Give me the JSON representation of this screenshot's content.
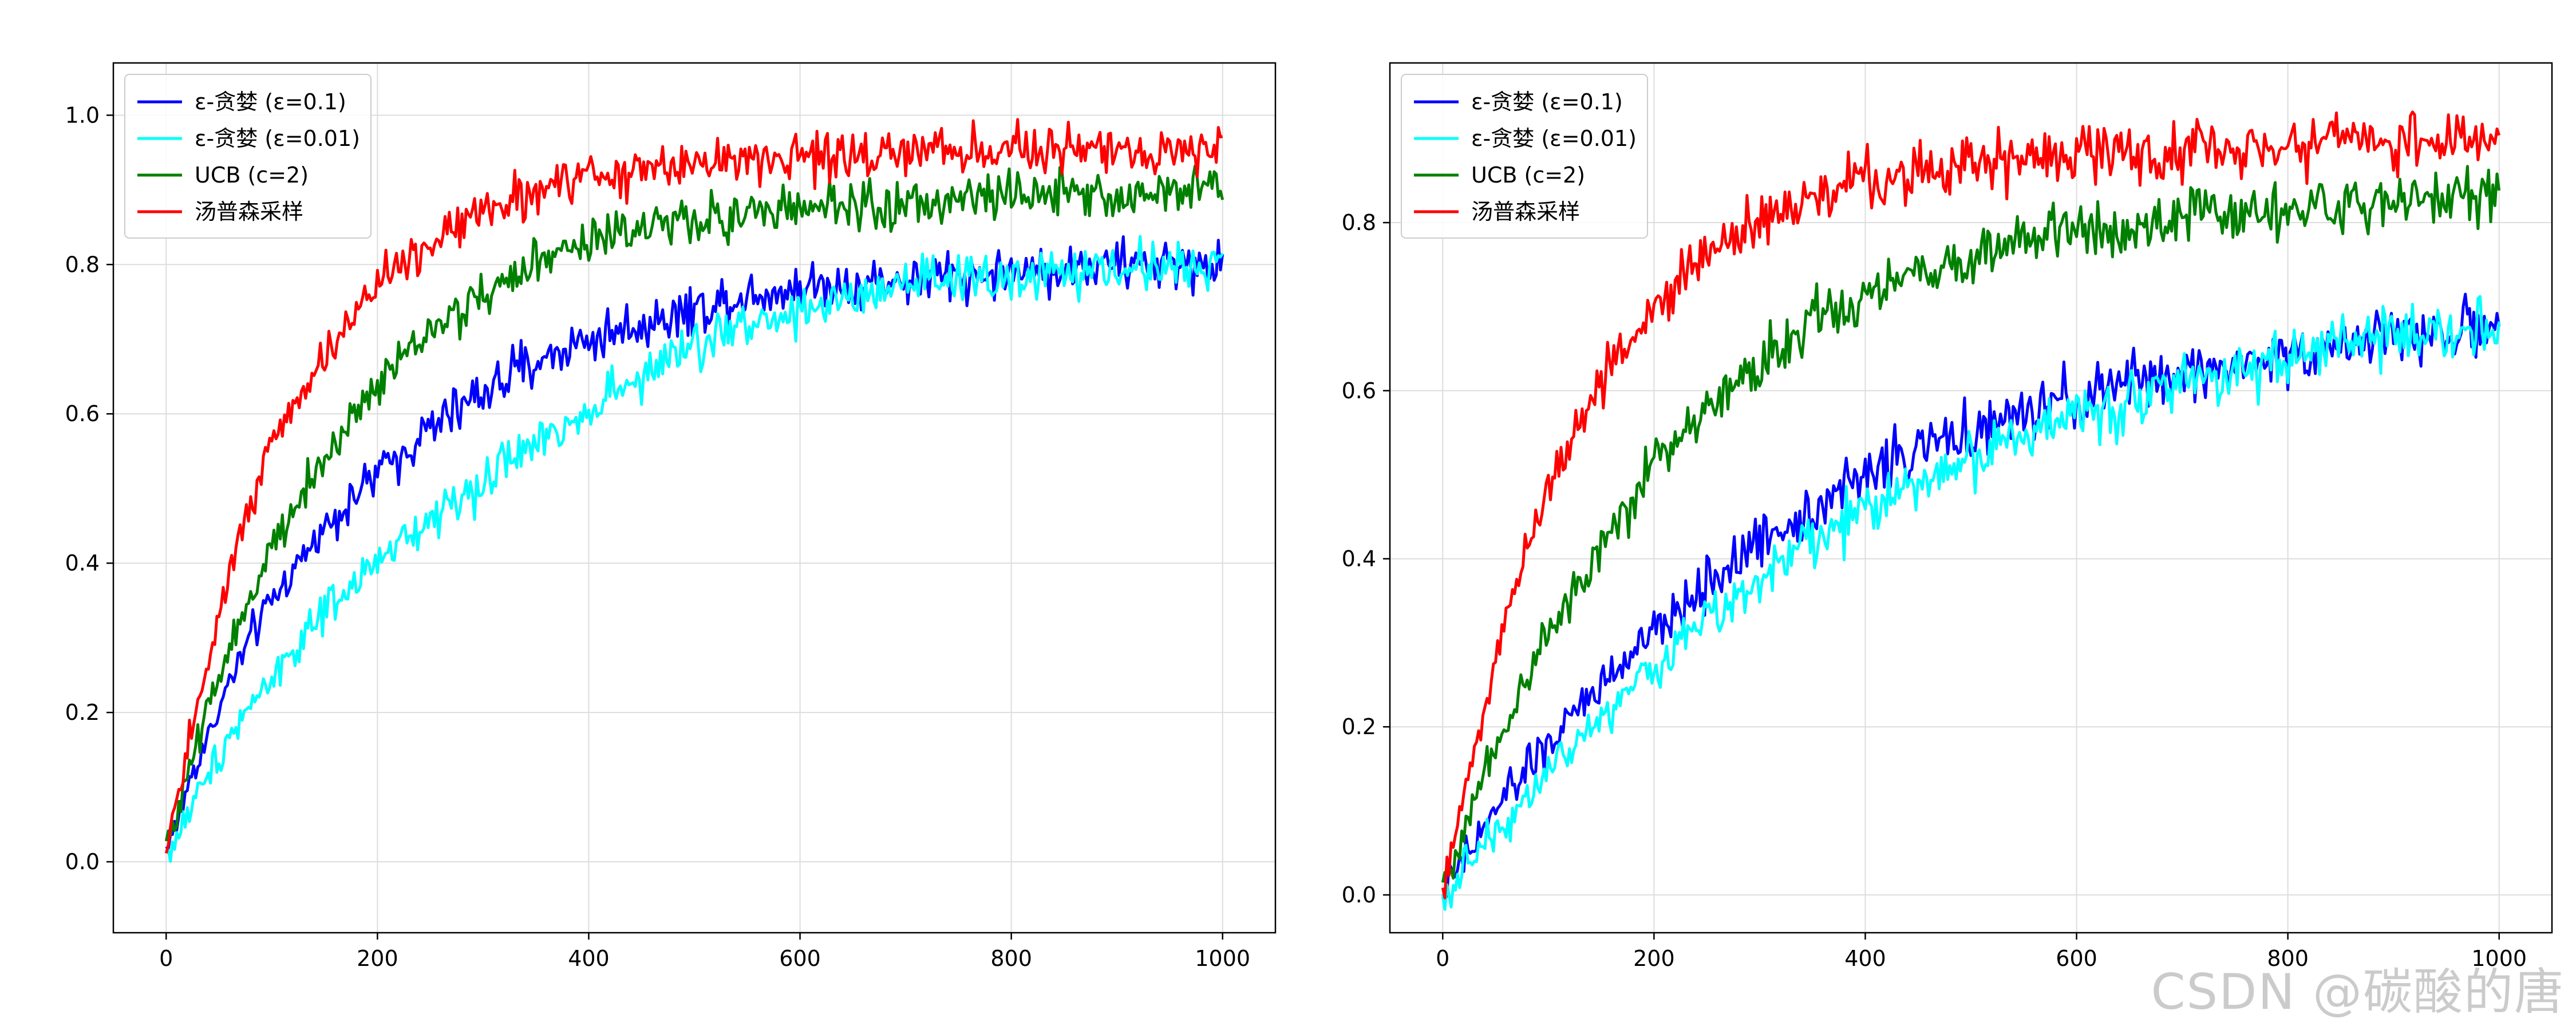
{
  "watermark": "CSDN @碳酸的唐",
  "chart_data": [
    {
      "type": "line",
      "title": "",
      "xlabel": "",
      "ylabel": "",
      "xlim": [
        -50,
        1050
      ],
      "ylim": [
        -0.095,
        1.07
      ],
      "xticks": [
        0,
        200,
        400,
        600,
        800,
        1000
      ],
      "yticks": [
        0.0,
        0.2,
        0.4,
        0.6,
        0.8,
        1.0
      ],
      "ytick_labels": [
        "0.0",
        "0.2",
        "0.4",
        "0.6",
        "0.8",
        "1.0"
      ],
      "grid": true,
      "legend_position": "top-left",
      "series": [
        {
          "name": "ε-贪婪 (ε=0.1)",
          "color": "#0000ff",
          "x": [
            0,
            10,
            20,
            40,
            60,
            80,
            100,
            150,
            200,
            250,
            300,
            350,
            400,
            450,
            500,
            550,
            600,
            650,
            700,
            750,
            800,
            850,
            900,
            950,
            1000
          ],
          "values": [
            0.02,
            0.05,
            0.1,
            0.17,
            0.24,
            0.3,
            0.35,
            0.45,
            0.52,
            0.58,
            0.63,
            0.67,
            0.7,
            0.72,
            0.74,
            0.76,
            0.77,
            0.775,
            0.78,
            0.785,
            0.79,
            0.795,
            0.8,
            0.8,
            0.8
          ]
        },
        {
          "name": "ε-贪婪 (ε=0.01)",
          "color": "#00ffff",
          "x": [
            0,
            10,
            20,
            40,
            60,
            80,
            100,
            150,
            200,
            250,
            300,
            350,
            400,
            450,
            500,
            550,
            600,
            650,
            700,
            750,
            800,
            850,
            900,
            950,
            1000
          ],
          "values": [
            0.01,
            0.03,
            0.06,
            0.12,
            0.17,
            0.21,
            0.25,
            0.33,
            0.4,
            0.46,
            0.51,
            0.56,
            0.61,
            0.65,
            0.69,
            0.72,
            0.74,
            0.75,
            0.77,
            0.78,
            0.78,
            0.79,
            0.79,
            0.8,
            0.8
          ]
        },
        {
          "name": "UCB (c=2)",
          "color": "#008000",
          "x": [
            0,
            10,
            20,
            40,
            60,
            80,
            100,
            150,
            200,
            250,
            300,
            350,
            400,
            450,
            500,
            550,
            600,
            650,
            700,
            750,
            800,
            850,
            900,
            950,
            1000
          ],
          "values": [
            0.02,
            0.06,
            0.12,
            0.21,
            0.29,
            0.36,
            0.42,
            0.54,
            0.64,
            0.71,
            0.76,
            0.8,
            0.83,
            0.85,
            0.86,
            0.87,
            0.875,
            0.88,
            0.88,
            0.885,
            0.89,
            0.89,
            0.89,
            0.895,
            0.9
          ]
        },
        {
          "name": "汤普森采样",
          "color": "#ff0000",
          "x": [
            0,
            10,
            20,
            40,
            60,
            80,
            100,
            150,
            200,
            250,
            300,
            350,
            400,
            450,
            500,
            550,
            600,
            650,
            700,
            750,
            800,
            850,
            900,
            950,
            1000
          ],
          "values": [
            0.0,
            0.08,
            0.15,
            0.28,
            0.39,
            0.48,
            0.56,
            0.68,
            0.77,
            0.83,
            0.87,
            0.9,
            0.92,
            0.93,
            0.935,
            0.94,
            0.945,
            0.945,
            0.95,
            0.95,
            0.95,
            0.955,
            0.955,
            0.955,
            0.955
          ]
        }
      ]
    },
    {
      "type": "line",
      "title": "",
      "xlabel": "",
      "ylabel": "",
      "xlim": [
        -50,
        1050
      ],
      "ylim": [
        -0.045,
        0.99
      ],
      "xticks": [
        0,
        200,
        400,
        600,
        800,
        1000
      ],
      "yticks": [
        0.0,
        0.2,
        0.4,
        0.6,
        0.8
      ],
      "ytick_labels": [
        "0.0",
        "0.2",
        "0.4",
        "0.6",
        "0.8"
      ],
      "grid": true,
      "legend_position": "top-left",
      "series": [
        {
          "name": "ε-贪婪 (ε=0.1)",
          "color": "#0000ff",
          "x": [
            0,
            10,
            20,
            40,
            60,
            80,
            100,
            150,
            200,
            250,
            300,
            350,
            400,
            450,
            500,
            550,
            600,
            650,
            700,
            750,
            800,
            850,
            900,
            950,
            1000
          ],
          "values": [
            0.0,
            0.02,
            0.04,
            0.08,
            0.12,
            0.15,
            0.18,
            0.25,
            0.31,
            0.37,
            0.42,
            0.46,
            0.5,
            0.53,
            0.55,
            0.57,
            0.59,
            0.61,
            0.62,
            0.63,
            0.645,
            0.655,
            0.665,
            0.67,
            0.675
          ]
        },
        {
          "name": "ε-贪婪 (ε=0.01)",
          "color": "#00ffff",
          "x": [
            0,
            10,
            20,
            40,
            60,
            80,
            100,
            150,
            200,
            250,
            300,
            350,
            400,
            450,
            500,
            550,
            600,
            650,
            700,
            750,
            800,
            850,
            900,
            950,
            1000
          ],
          "values": [
            0.0,
            0.01,
            0.03,
            0.06,
            0.09,
            0.12,
            0.15,
            0.21,
            0.27,
            0.33,
            0.38,
            0.42,
            0.46,
            0.49,
            0.52,
            0.55,
            0.57,
            0.59,
            0.61,
            0.625,
            0.64,
            0.655,
            0.665,
            0.675,
            0.68
          ]
        },
        {
          "name": "UCB (c=2)",
          "color": "#008000",
          "x": [
            0,
            10,
            20,
            40,
            60,
            80,
            100,
            150,
            200,
            250,
            300,
            350,
            400,
            450,
            500,
            550,
            600,
            650,
            700,
            750,
            800,
            850,
            900,
            950,
            1000
          ],
          "values": [
            0.01,
            0.04,
            0.08,
            0.15,
            0.21,
            0.26,
            0.31,
            0.42,
            0.51,
            0.58,
            0.63,
            0.68,
            0.71,
            0.74,
            0.76,
            0.78,
            0.79,
            0.8,
            0.805,
            0.81,
            0.815,
            0.82,
            0.825,
            0.83,
            0.835
          ]
        },
        {
          "name": "汤普森采样",
          "color": "#ff0000",
          "x": [
            0,
            10,
            20,
            40,
            60,
            80,
            100,
            150,
            200,
            250,
            300,
            350,
            400,
            450,
            500,
            550,
            600,
            650,
            700,
            750,
            800,
            850,
            900,
            950,
            1000
          ],
          "values": [
            0.0,
            0.06,
            0.12,
            0.23,
            0.33,
            0.41,
            0.48,
            0.61,
            0.7,
            0.76,
            0.8,
            0.83,
            0.85,
            0.86,
            0.87,
            0.875,
            0.88,
            0.885,
            0.89,
            0.89,
            0.895,
            0.895,
            0.9,
            0.9,
            0.9
          ]
        }
      ]
    }
  ]
}
